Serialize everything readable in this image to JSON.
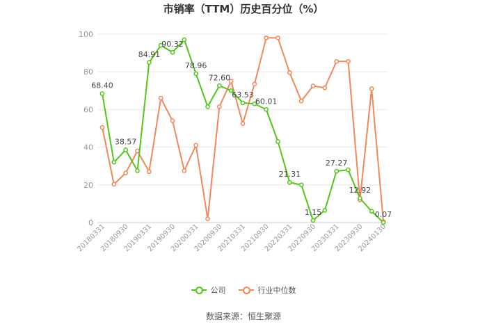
{
  "chart_data": {
    "type": "line",
    "title": "市销率（TTM）历史百分位（%）",
    "xlabel": "",
    "ylabel": "",
    "ylim": [
      0,
      100
    ],
    "yticks": [
      0,
      20,
      40,
      60,
      80,
      100
    ],
    "grid": true,
    "legend_position": "bottom",
    "x": [
      "20180331",
      "20180630",
      "20180930",
      "20181231",
      "20190331",
      "20190630",
      "20190930",
      "20191231",
      "20200331",
      "20200630",
      "20200930",
      "20201231",
      "20210331",
      "20210630",
      "20210930",
      "20211231",
      "20220331",
      "20220630",
      "20220930",
      "20221231",
      "20230331",
      "20230630",
      "20230930",
      "20231231",
      "20240130"
    ],
    "x_tick_labels": [
      "20180331",
      "20180930",
      "20190331",
      "20190930",
      "20200331",
      "20200930",
      "20210331",
      "20210930",
      "20220331",
      "20220930",
      "20230331",
      "20230930",
      "20240130"
    ],
    "series": [
      {
        "name": "公司",
        "color": "#52c41a",
        "values": [
          68.4,
          32,
          38.57,
          27.5,
          84.91,
          94,
          90.32,
          97,
          78.96,
          61.5,
          72.6,
          70,
          63.53,
          63,
          60.01,
          43,
          21.31,
          20,
          1.15,
          6.5,
          27.27,
          28,
          12.92,
          6,
          0.07
        ],
        "labels": [
          "68.40",
          "",
          "38.57",
          "",
          "84.91",
          "",
          "90.32",
          "",
          "78.96",
          "",
          "72.60",
          "",
          "63.53",
          "",
          "60.01",
          "",
          "21.31",
          "",
          "1.15",
          "",
          "27.27",
          "",
          "12.92",
          "",
          "0.07"
        ]
      },
      {
        "name": "行业中位数",
        "color": "#f0885a",
        "values": [
          50.5,
          20.3,
          26.3,
          38,
          27,
          66,
          54,
          27.5,
          41,
          2,
          61.5,
          75,
          52.5,
          73.5,
          98,
          98,
          79.5,
          64.5,
          72.5,
          71.5,
          85.5,
          85.5,
          12,
          71,
          0.5
        ]
      }
    ]
  },
  "footer": {
    "source": "数据来源：恒生聚源"
  }
}
